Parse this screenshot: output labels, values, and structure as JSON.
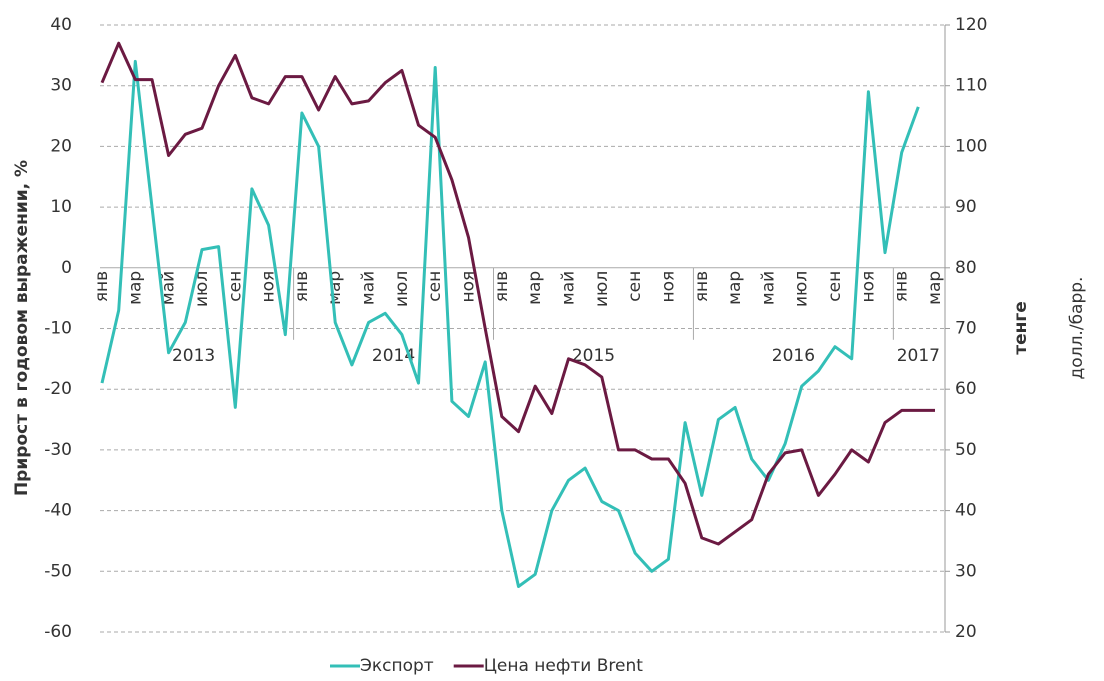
{
  "chart_data": {
    "type": "line",
    "categories": [
      "янв",
      null,
      "мар",
      null,
      "май",
      null,
      "июл",
      null,
      "сен",
      null,
      "ноя",
      null,
      "янв",
      null,
      "мар",
      null,
      "май",
      null,
      "июл",
      null,
      "сен",
      null,
      "ноя",
      null,
      "янв",
      null,
      "мар",
      null,
      "май",
      null,
      "июл",
      null,
      "сен",
      null,
      "ноя",
      null,
      "янв",
      null,
      "мар",
      null,
      "май",
      null,
      "июл",
      null,
      "сен",
      null,
      "ноя",
      null,
      "янв",
      null,
      "мар"
    ],
    "years": [
      "2013",
      "2014",
      "2015",
      "2016",
      "2017"
    ],
    "ylabel": "Прирост в годовом выражении, %",
    "y2label": "тенге",
    "y2unit": "долл./барр.",
    "ylim": [
      -60,
      40
    ],
    "yticks": [
      -60,
      -50,
      -40,
      -30,
      -20,
      -10,
      0,
      10,
      20,
      30,
      40
    ],
    "y2lim": [
      20,
      120
    ],
    "y2ticks": [
      20,
      30,
      40,
      50,
      60,
      70,
      80,
      90,
      100,
      110,
      120
    ],
    "grid": true,
    "legend": "bottom",
    "series": [
      {
        "name": "Экспорт",
        "color": "#33bfb7",
        "values": [
          -19,
          -7,
          34,
          10,
          -14,
          -9,
          3,
          3.5,
          -23,
          13,
          7,
          -11,
          25.5,
          20,
          -9,
          -16,
          -9,
          -7.5,
          -11,
          -19,
          33,
          -22,
          -24.5,
          -15.5,
          -40,
          -52.5,
          -50.5,
          -40,
          -35,
          -33,
          -38.5,
          -40,
          -47,
          -50,
          -48,
          -25.5,
          -37.5,
          -25,
          -23,
          -31.5,
          -35,
          -29,
          -19.5,
          -17,
          -13,
          -15,
          29,
          2.5,
          19,
          26.5,
          null
        ]
      },
      {
        "name": "Цена нефти Brent",
        "color": "#6b1a42",
        "axis": "y2",
        "values": [
          110.5,
          117,
          111,
          111,
          98.5,
          102,
          103,
          110,
          115,
          108,
          107,
          111.5,
          111.5,
          106,
          111.5,
          107,
          107.5,
          110.5,
          112.5,
          103.5,
          101.5,
          94.5,
          85,
          70,
          55.5,
          53,
          60.5,
          56,
          65,
          64,
          62,
          50,
          50,
          48.5,
          48.5,
          44.5,
          35.5,
          34.5,
          36.5,
          38.5,
          46,
          49.5,
          50,
          42.5,
          46,
          50,
          48,
          54.5,
          56.5,
          56.5,
          56.5
        ]
      }
    ]
  }
}
